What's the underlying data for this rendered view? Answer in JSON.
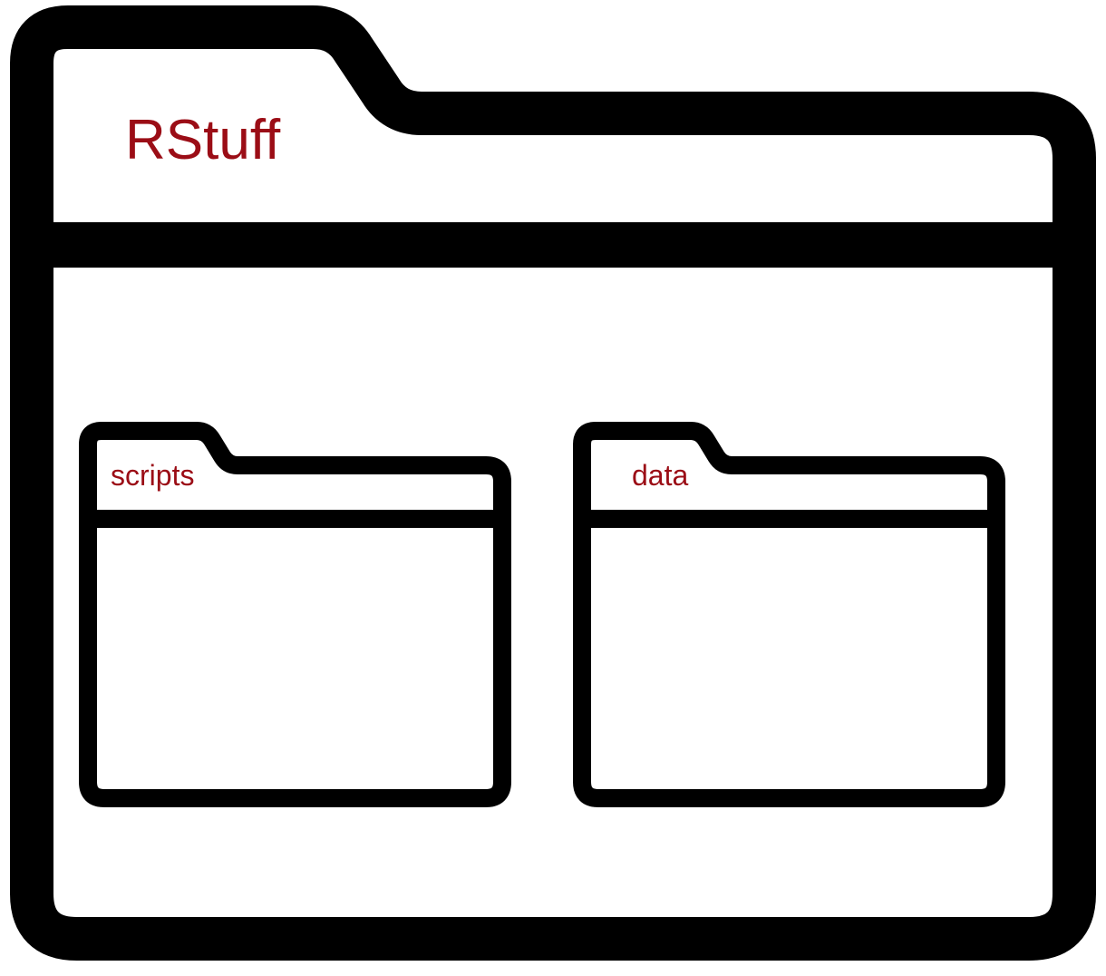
{
  "colors": {
    "outline": "#000000",
    "fill": "#ffffff",
    "label": "#9b0d16"
  },
  "main_folder": {
    "icon": "folder-icon",
    "label": "RStuff",
    "subfolders": [
      {
        "icon": "folder-icon",
        "label": "scripts"
      },
      {
        "icon": "folder-icon",
        "label": "data"
      }
    ]
  }
}
